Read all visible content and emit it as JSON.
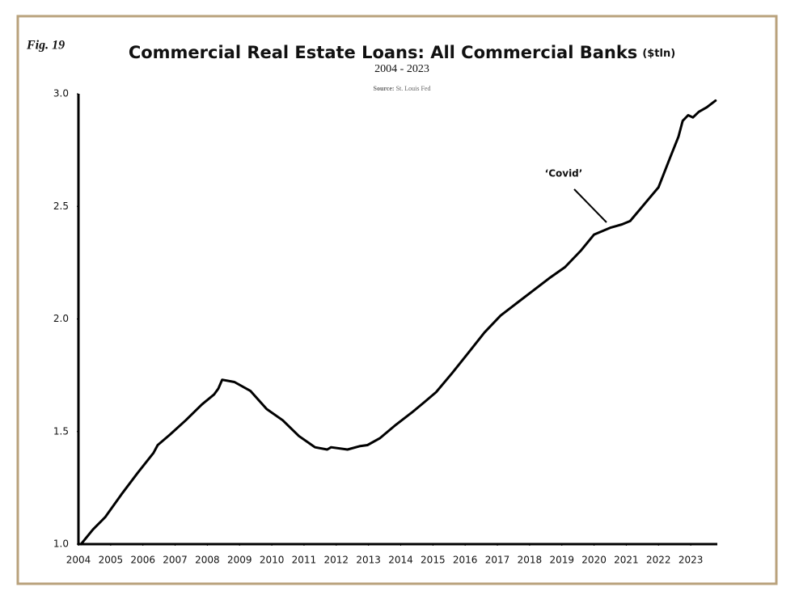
{
  "chart_data": {
    "type": "line",
    "figure_label": "Fig. 19",
    "title": "Commercial Real Estate Loans: All Commercial Banks",
    "title_unit": "($tln)",
    "subtitle": "2004 - 2023",
    "source_label": "Source:",
    "source": "St. Louis Fed",
    "annotation": "‘Covid’",
    "xlim": [
      2004,
      2023.8
    ],
    "xticks": [
      2004,
      2005,
      2006,
      2007,
      2008,
      2009,
      2010,
      2011,
      2012,
      2013,
      2014,
      2015,
      2016,
      2017,
      2018,
      2019,
      2020,
      2021,
      2022,
      2023
    ],
    "ylim": [
      1,
      3
    ],
    "yticks": [
      {
        "value": 1,
        "label": "1.0"
      },
      {
        "value": 1.5,
        "label": "1.5"
      },
      {
        "value": 2,
        "label": "2.0"
      },
      {
        "value": 2.5,
        "label": "2.5"
      },
      {
        "value": 3,
        "label": "3.0"
      }
    ],
    "grid": false,
    "series": [
      {
        "color": "#000000",
        "x": [
          2004.08,
          2004.45,
          2004.83,
          2005.33,
          2005.83,
          2006.33,
          2006.46,
          2006.83,
          2007.33,
          2007.83,
          2008.21,
          2008.34,
          2008.46,
          2008.84,
          2009.34,
          2009.84,
          2010.34,
          2010.84,
          2011.34,
          2011.72,
          2011.84,
          2012.35,
          2012.72,
          2012.97,
          2013.35,
          2013.85,
          2014.35,
          2014.73,
          2015.1,
          2015.6,
          2016.1,
          2016.6,
          2017.1,
          2017.6,
          2018.1,
          2018.6,
          2019.1,
          2019.6,
          2020.0,
          2020.5,
          2020.87,
          2021.12,
          2021.62,
          2022.0,
          2022.37,
          2022.62,
          2022.75,
          2022.92,
          2023.07,
          2023.25,
          2023.5,
          2023.77
        ],
        "values": [
          1.0,
          1.065,
          1.12,
          1.22,
          1.315,
          1.405,
          1.44,
          1.485,
          1.55,
          1.62,
          1.665,
          1.69,
          1.73,
          1.72,
          1.68,
          1.6,
          1.55,
          1.48,
          1.43,
          1.42,
          1.43,
          1.42,
          1.435,
          1.44,
          1.47,
          1.53,
          1.585,
          1.63,
          1.675,
          1.76,
          1.85,
          1.94,
          2.015,
          2.07,
          2.125,
          2.18,
          2.23,
          2.305,
          2.375,
          2.405,
          2.42,
          2.435,
          2.52,
          2.585,
          2.72,
          2.81,
          2.88,
          2.905,
          2.895,
          2.92,
          2.94,
          2.97
        ]
      }
    ]
  }
}
